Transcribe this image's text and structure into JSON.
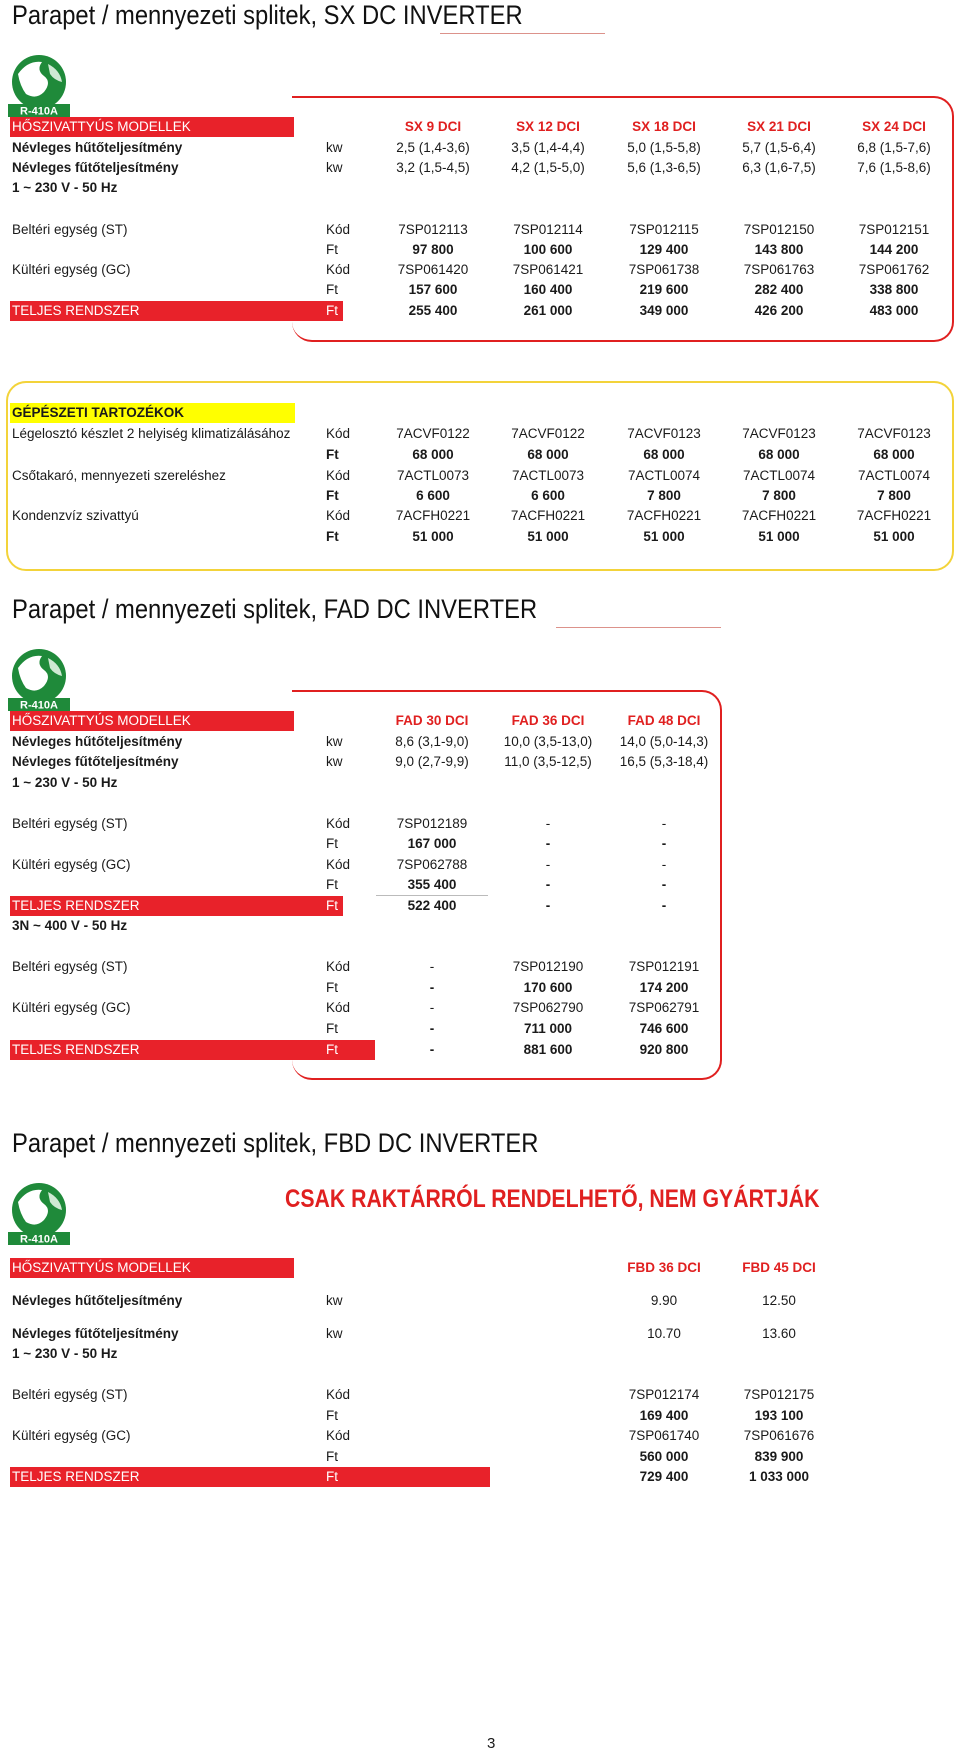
{
  "logo_label": "R-410A",
  "section1": {
    "title": "Parapet / mennyezeti splitek, SX DC INVERTER",
    "header_label": "HŐSZIVATTYÚS MODELLEK",
    "models": [
      "SX 9 DCI",
      "SX 12 DCI",
      "SX 18 DCI",
      "SX 21 DCI",
      "SX 24 DCI"
    ],
    "cooling_label": "Névleges hűtőteljesítmény",
    "cooling_unit": "kw",
    "cooling": [
      "2,5 (1,4-3,6)",
      "3,5 (1,4-4,4)",
      "5,0 (1,5-5,8)",
      "5,7 (1,5-6,4)",
      "6,8 (1,5-7,6)"
    ],
    "heating_label": "Névleges fűtőteljesítmény",
    "heating_unit": "kw",
    "heating": [
      "3,2 (1,5-4,5)",
      "4,2 (1,5-5,0)",
      "5,6 (1,3-6,5)",
      "6,3 (1,6-7,5)",
      "7,6 (1,5-8,6)"
    ],
    "power": "1 ~ 230 V - 50 Hz",
    "indoor_label": "Beltéri egység (ST)",
    "kod": "Kód",
    "ft": "Ft",
    "indoor_codes": [
      "7SP012113",
      "7SP012114",
      "7SP012115",
      "7SP012150",
      "7SP012151"
    ],
    "indoor_prices": [
      "97 800",
      "100 600",
      "129 400",
      "143 800",
      "144 200"
    ],
    "outdoor_label": "Kültéri egység (GC)",
    "outdoor_codes": [
      "7SP061420",
      "7SP061421",
      "7SP061738",
      "7SP061763",
      "7SP061762"
    ],
    "outdoor_prices": [
      "157 600",
      "160 400",
      "219 600",
      "282 400",
      "338 800"
    ],
    "total_label": "TELJES RENDSZER",
    "total_prices": [
      "255 400",
      "261 000",
      "349 000",
      "426 200",
      "483 000"
    ]
  },
  "accessories": {
    "header_label": "GÉPÉSZETI TARTOZÉKOK",
    "kod": "Kód",
    "ft": "Ft",
    "items": [
      {
        "label": "Légelosztó készlet 2 helyiség klimatizálásához",
        "codes": [
          "7ACVF0122",
          "7ACVF0122",
          "7ACVF0123",
          "7ACVF0123",
          "7ACVF0123"
        ],
        "prices": [
          "68 000",
          "68 000",
          "68 000",
          "68 000",
          "68 000"
        ]
      },
      {
        "label": "Csőtakaró, mennyezeti szereléshez",
        "codes": [
          "7ACTL0073",
          "7ACTL0073",
          "7ACTL0074",
          "7ACTL0074",
          "7ACTL0074"
        ],
        "prices": [
          "6 600",
          "6 600",
          "7 800",
          "7 800",
          "7 800"
        ]
      },
      {
        "label": "Kondenzvíz szivattyú",
        "codes": [
          "7ACFH0221",
          "7ACFH0221",
          "7ACFH0221",
          "7ACFH0221",
          "7ACFH0221"
        ],
        "prices": [
          "51 000",
          "51 000",
          "51 000",
          "51 000",
          "51 000"
        ]
      }
    ]
  },
  "section2": {
    "title": "Parapet / mennyezeti splitek, FAD DC INVERTER",
    "header_label": "HŐSZIVATTYÚS MODELLEK",
    "models": [
      "FAD 30 DCI",
      "FAD 36 DCI",
      "FAD 48 DCI"
    ],
    "cooling_label": "Névleges hűtőteljesítmény",
    "cooling_unit": "kw",
    "cooling": [
      "8,6 (3,1-9,0)",
      "10,0 (3,5-13,0)",
      "14,0 (5,0-14,3)"
    ],
    "heating_label": "Névleges fűtőteljesítmény",
    "heating_unit": "kw",
    "heating": [
      "9,0 (2,7-9,9)",
      "11,0 (3,5-12,5)",
      "16,5 (5,3-18,4)"
    ],
    "power1": "1 ~ 230 V - 50 Hz",
    "kod": "Kód",
    "ft": "Ft",
    "indoor_label": "Beltéri egység (ST)",
    "outdoor_label": "Kültéri egység (GC)",
    "total_label": "TELJES RENDSZER",
    "p1_indoor_codes": [
      "7SP012189",
      "-",
      "-"
    ],
    "p1_indoor_prices": [
      "167 000",
      "-",
      "-"
    ],
    "p1_outdoor_codes": [
      "7SP062788",
      "-",
      "-"
    ],
    "p1_outdoor_prices": [
      "355 400",
      "-",
      "-"
    ],
    "p1_total_prices": [
      "522 400",
      "-",
      "-"
    ],
    "power3": "3N ~ 400 V - 50 Hz",
    "p3_indoor_codes": [
      "-",
      "7SP012190",
      "7SP012191"
    ],
    "p3_indoor_prices": [
      "-",
      "170 600",
      "174 200"
    ],
    "p3_outdoor_codes": [
      "-",
      "7SP062790",
      "7SP062791"
    ],
    "p3_outdoor_prices": [
      "-",
      "711 000",
      "746 600"
    ],
    "p3_total_prices": [
      "-",
      "881 600",
      "920 800"
    ]
  },
  "section3": {
    "title": "Parapet / mennyezeti splitek, FBD DC INVERTER",
    "notice": "CSAK RAKTÁRRÓL RENDELHETŐ, NEM GYÁRTJÁK",
    "header_label": "HŐSZIVATTYÚS MODELLEK",
    "models": [
      "FBD 36 DCI",
      "FBD 45 DCI"
    ],
    "cooling_label": "Névleges hűtőteljesítmény",
    "cooling_unit": "kw",
    "cooling": [
      "9.90",
      "12.50"
    ],
    "heating_label": "Névleges fűtőteljesítmény",
    "heating_unit": "kw",
    "heating": [
      "10.70",
      "13.60"
    ],
    "power": "1 ~ 230 V - 50 Hz",
    "kod": "Kód",
    "ft": "Ft",
    "indoor_label": "Beltéri egység (ST)",
    "indoor_codes": [
      "7SP012174",
      "7SP012175"
    ],
    "indoor_prices": [
      "169 400",
      "193 100"
    ],
    "outdoor_label": "Kültéri egység (GC)",
    "outdoor_codes": [
      "7SP061740",
      "7SP061676"
    ],
    "outdoor_prices": [
      "560 000",
      "839 900"
    ],
    "total_label": "TELJES RENDSZER",
    "total_prices": [
      "729 400",
      "1 033 000"
    ]
  },
  "page_number": "3"
}
